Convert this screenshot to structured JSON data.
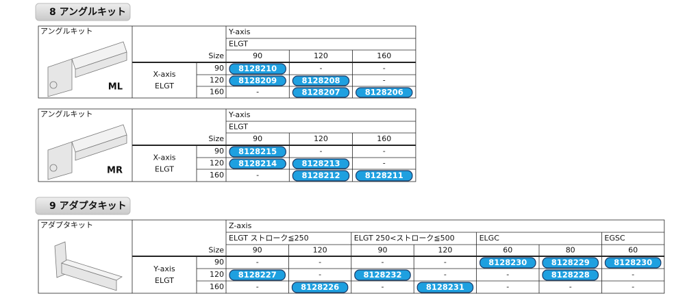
{
  "sections": [
    {
      "title": "8 アングルキット",
      "tables": [
        {
          "image_label": "アングルキット",
          "model": "ML",
          "column_axis": "Y-axis",
          "size_label": "Size",
          "row_axis": "X-axis",
          "row_series": "ELGT",
          "groups": [
            {
              "name": "ELGT",
              "sizes": [
                90,
                120,
                160
              ]
            }
          ],
          "rows": [
            {
              "size": 90,
              "cells": [
                "8128210",
                "-",
                "-"
              ]
            },
            {
              "size": 120,
              "cells": [
                "8128209",
                "8128208",
                "-"
              ]
            },
            {
              "size": 160,
              "cells": [
                "-",
                "8128207",
                "8128206"
              ]
            }
          ]
        },
        {
          "image_label": "アングルキット",
          "model": "MR",
          "column_axis": "Y-axis",
          "size_label": "Size",
          "row_axis": "X-axis",
          "row_series": "ELGT",
          "groups": [
            {
              "name": "ELGT",
              "sizes": [
                90,
                120,
                160
              ]
            }
          ],
          "rows": [
            {
              "size": 90,
              "cells": [
                "8128215",
                "-",
                "-"
              ]
            },
            {
              "size": 120,
              "cells": [
                "8128214",
                "8128213",
                "-"
              ]
            },
            {
              "size": 160,
              "cells": [
                "-",
                "8128212",
                "8128211"
              ]
            }
          ]
        }
      ]
    },
    {
      "title": "9 アダプタキット",
      "tables": [
        {
          "image_label": "アダプタキット",
          "column_axis": "Z-axis",
          "size_label": "Size",
          "row_axis": "Y-axis",
          "row_series": "ELGT",
          "groups": [
            {
              "name": "ELGT ストローク≦250",
              "sizes": [
                90,
                120
              ]
            },
            {
              "name": "ELGT 250<ストローク≦500",
              "sizes": [
                90,
                120
              ]
            },
            {
              "name": "ELGC",
              "sizes": [
                60,
                80
              ]
            },
            {
              "name": "EGSC",
              "sizes": [
                60
              ]
            }
          ],
          "rows": [
            {
              "size": 90,
              "cells": [
                "-",
                "-",
                "-",
                "-",
                "8128230",
                "8128229",
                "8128230"
              ]
            },
            {
              "size": 120,
              "cells": [
                "8128227",
                "-",
                "8128232",
                "-",
                "-",
                "8128228",
                "-"
              ]
            },
            {
              "size": 160,
              "cells": [
                "-",
                "8128226",
                "-",
                "8128231",
                "-",
                "-",
                "-"
              ]
            }
          ]
        }
      ]
    }
  ]
}
